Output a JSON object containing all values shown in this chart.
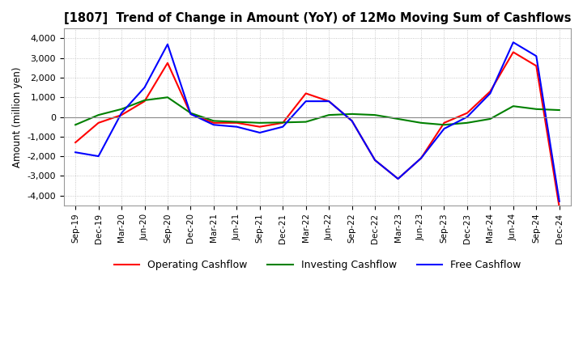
{
  "title": "[1807]  Trend of Change in Amount (YoY) of 12Mo Moving Sum of Cashflows",
  "ylabel": "Amount (million yen)",
  "ylim": [
    -4500,
    4500
  ],
  "yticks": [
    -4000,
    -3000,
    -2000,
    -1000,
    0,
    1000,
    2000,
    3000,
    4000
  ],
  "x_labels": [
    "Sep-19",
    "Dec-19",
    "Mar-20",
    "Jun-20",
    "Sep-20",
    "Dec-20",
    "Mar-21",
    "Jun-21",
    "Sep-21",
    "Dec-21",
    "Mar-22",
    "Jun-22",
    "Sep-22",
    "Dec-22",
    "Mar-23",
    "Jun-23",
    "Sep-23",
    "Dec-23",
    "Mar-24",
    "Jun-24",
    "Sep-24",
    "Dec-24"
  ],
  "operating": [
    -1300,
    -300,
    100,
    800,
    2750,
    150,
    -300,
    -300,
    -500,
    -300,
    1200,
    800,
    -200,
    -2200,
    -3150,
    -2100,
    -300,
    200,
    1300,
    3300,
    2600,
    -4600
  ],
  "investing": [
    -400,
    100,
    400,
    850,
    1000,
    200,
    -200,
    -250,
    -300,
    -280,
    -250,
    100,
    150,
    100,
    -100,
    -300,
    -400,
    -300,
    -100,
    550,
    400,
    350
  ],
  "free": [
    -1800,
    -2000,
    200,
    1500,
    3700,
    150,
    -400,
    -500,
    -800,
    -500,
    800,
    800,
    -200,
    -2200,
    -3150,
    -2100,
    -600,
    0,
    1200,
    3800,
    3100,
    -4300
  ],
  "operating_color": "#ff0000",
  "investing_color": "#008000",
  "free_color": "#0000ff",
  "background_color": "#ffffff",
  "grid_color": "#bbbbbb",
  "line_width": 1.5
}
